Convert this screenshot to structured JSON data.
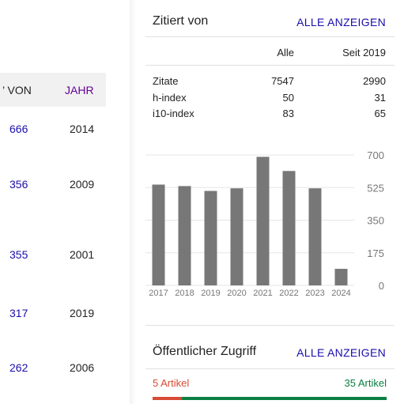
{
  "left_table": {
    "header": {
      "by_label": "’ VON",
      "year_label": "JAHR"
    },
    "rows": [
      {
        "cited_by": "666",
        "year": "2014"
      },
      {
        "cited_by": "356",
        "year": "2009"
      },
      {
        "cited_by": "355",
        "year": "2001"
      },
      {
        "cited_by": "317",
        "year": "2019"
      },
      {
        "cited_by": "262",
        "year": "2006"
      }
    ]
  },
  "cited_by_panel": {
    "title": "Zitiert von",
    "view_all": "ALLE ANZEIGEN",
    "columns": [
      "Alle",
      "Seit 2019"
    ],
    "stats": [
      {
        "label": "Zitate",
        "all": "7547",
        "since": "2990"
      },
      {
        "label": "h-index",
        "all": "50",
        "since": "31"
      },
      {
        "label": "i10-index",
        "all": "83",
        "since": "65"
      }
    ]
  },
  "chart_data": {
    "type": "bar",
    "categories": [
      "2017",
      "2018",
      "2019",
      "2020",
      "2021",
      "2022",
      "2023",
      "2024"
    ],
    "values": [
      541,
      533,
      507,
      521,
      690,
      614,
      521,
      89
    ],
    "y_ticks": [
      "0",
      "175",
      "350",
      "525",
      "700"
    ],
    "ylim": [
      0,
      700
    ],
    "grid": true,
    "bar_color": "#777777"
  },
  "public_access": {
    "title": "Öffentlicher Zugriff",
    "view_all": "ALLE ANZEIGEN",
    "not_available": "5 Artikel",
    "available": "35 Artikel",
    "not_available_fraction": 0.125,
    "colors": {
      "not_available": "#d84a33",
      "available": "#0b8043"
    }
  }
}
